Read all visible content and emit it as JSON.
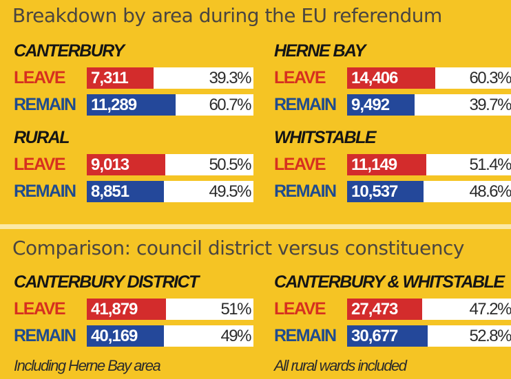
{
  "headings": {
    "breakdown": "Breakdown by area during the EU referendum",
    "comparison": "Comparison: council district versus constituency"
  },
  "labels": {
    "leave": "LEAVE",
    "remain": "REMAIN"
  },
  "colors": {
    "background": "#f5c424",
    "leave": "#d32c2c",
    "remain": "#24489a",
    "leave_text": "#d6301f",
    "remain_text": "#1f4b8f"
  },
  "chart_data": {
    "type": "bar",
    "panels": [
      {
        "name": "CANTERBURY",
        "note": "",
        "series": [
          {
            "name": "LEAVE",
            "votes": 7311,
            "votes_label": "7,311",
            "pct": 39.3,
            "pct_label": "39.3%"
          },
          {
            "name": "REMAIN",
            "votes": 11289,
            "votes_label": "11,289",
            "pct": 60.7,
            "pct_label": "60.7%"
          }
        ]
      },
      {
        "name": "HERNE BAY",
        "note": "",
        "series": [
          {
            "name": "LEAVE",
            "votes": 14406,
            "votes_label": "14,406",
            "pct": 60.3,
            "pct_label": "60.3%"
          },
          {
            "name": "REMAIN",
            "votes": 9492,
            "votes_label": "9,492",
            "pct": 39.7,
            "pct_label": "39.7%"
          }
        ]
      },
      {
        "name": "RURAL",
        "note": "",
        "series": [
          {
            "name": "LEAVE",
            "votes": 9013,
            "votes_label": "9,013",
            "pct": 50.5,
            "pct_label": "50.5%"
          },
          {
            "name": "REMAIN",
            "votes": 8851,
            "votes_label": "8,851",
            "pct": 49.5,
            "pct_label": "49.5%"
          }
        ]
      },
      {
        "name": "WHITSTABLE",
        "note": "",
        "series": [
          {
            "name": "LEAVE",
            "votes": 11149,
            "votes_label": "11,149",
            "pct": 51.4,
            "pct_label": "51.4%"
          },
          {
            "name": "REMAIN",
            "votes": 10537,
            "votes_label": "10,537",
            "pct": 48.6,
            "pct_label": "48.6%"
          }
        ]
      },
      {
        "name": "CANTERBURY DISTRICT",
        "note": "Including Herne Bay area",
        "series": [
          {
            "name": "LEAVE",
            "votes": 41879,
            "votes_label": "41,879",
            "pct": 51,
            "pct_label": "51%"
          },
          {
            "name": "REMAIN",
            "votes": 40169,
            "votes_label": "40,169",
            "pct": 49,
            "pct_label": "49%"
          }
        ]
      },
      {
        "name": "CANTERBURY & WHITSTABLE",
        "note": "All rural wards included",
        "series": [
          {
            "name": "LEAVE",
            "votes": 27473,
            "votes_label": "27,473",
            "pct": 47.2,
            "pct_label": "47.2%"
          },
          {
            "name": "REMAIN",
            "votes": 30677,
            "votes_label": "30,677",
            "pct": 52.8,
            "pct_label": "52.8%"
          }
        ]
      }
    ]
  }
}
